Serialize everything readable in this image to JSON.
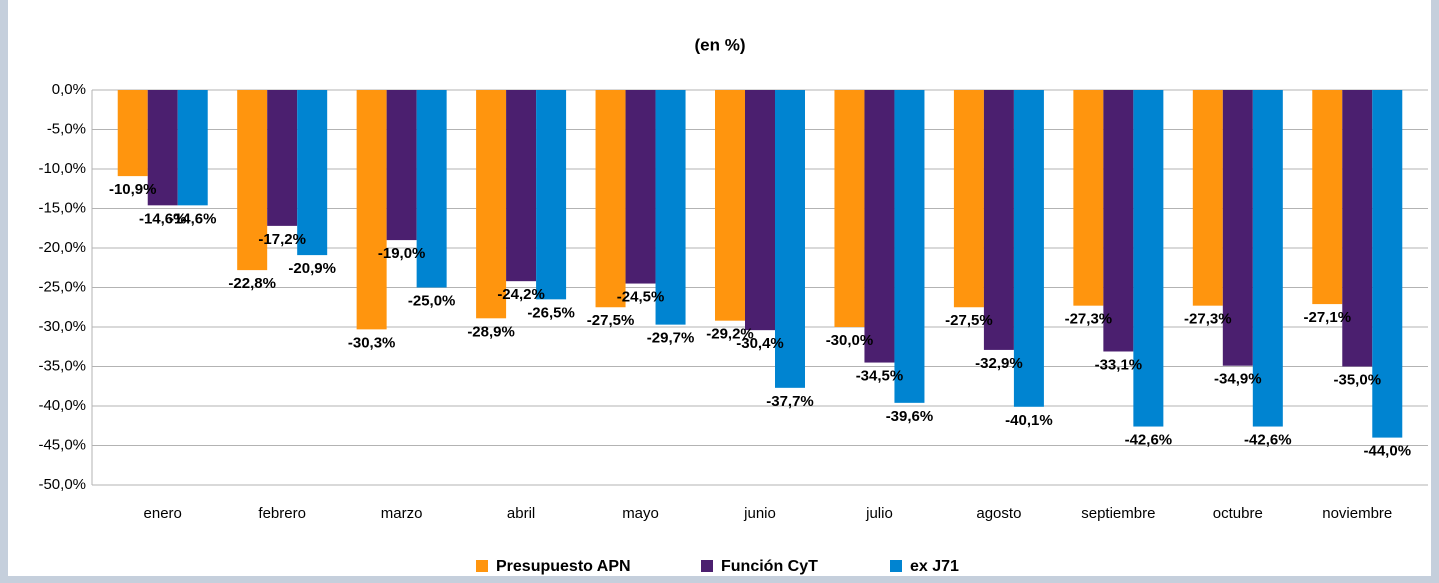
{
  "chart_data": {
    "type": "bar",
    "subtitle": "(en %)",
    "categories": [
      "enero",
      "febrero",
      "marzo",
      "abril",
      "mayo",
      "junio",
      "julio",
      "agosto",
      "septiembre",
      "octubre",
      "noviembre"
    ],
    "series": [
      {
        "name": "Presupuesto APN",
        "color": "#ff950e",
        "values": [
          -10.9,
          -22.8,
          -30.3,
          -28.9,
          -27.5,
          -29.2,
          -30.0,
          -27.5,
          -27.3,
          -27.3,
          -27.1
        ],
        "value_labels": [
          "-10,9%",
          "-22,8%",
          "-30,3%",
          "-28,9%",
          "-27,5%",
          "-29,2%",
          "-30,0%",
          "-27,5%",
          "-27,3%",
          "-27,3%",
          "-27,1%"
        ]
      },
      {
        "name": "Función CyT",
        "color": "#4b1f6f",
        "values": [
          -14.6,
          -17.2,
          -19.0,
          -24.2,
          -24.5,
          -30.4,
          -34.5,
          -32.9,
          -33.1,
          -34.9,
          -35.0
        ],
        "value_labels": [
          "-14,6%",
          "-17,2%",
          "-19,0%",
          "-24,2%",
          "-24,5%",
          "-30,4%",
          "-34,5%",
          "-32,9%",
          "-33,1%",
          "-34,9%",
          "-35,0%"
        ]
      },
      {
        "name": "ex J71",
        "color": "#0084d1",
        "values": [
          -14.6,
          -20.9,
          -25.0,
          -26.5,
          -29.7,
          -37.7,
          -39.6,
          -40.1,
          -42.6,
          -42.6,
          -44.0
        ],
        "value_labels": [
          "-14,6%",
          "-20,9%",
          "-25,0%",
          "-26,5%",
          "-29,7%",
          "-37,7%",
          "-39,6%",
          "-40,1%",
          "-42,6%",
          "-42,6%",
          "-44,0%"
        ]
      }
    ],
    "ylim": [
      -50,
      0
    ],
    "yticks": [
      {
        "value": 0,
        "label": "0,0%"
      },
      {
        "value": -5,
        "label": "-5,0%"
      },
      {
        "value": -10,
        "label": "-10,0%"
      },
      {
        "value": -15,
        "label": "-15,0%"
      },
      {
        "value": -20,
        "label": "-20,0%"
      },
      {
        "value": -25,
        "label": "-25,0%"
      },
      {
        "value": -30,
        "label": "-30,0%"
      },
      {
        "value": -35,
        "label": "-35,0%"
      },
      {
        "value": -40,
        "label": "-40,0%"
      },
      {
        "value": -45,
        "label": "-45,0%"
      },
      {
        "value": -50,
        "label": "-50,0%"
      }
    ],
    "grid": true,
    "legend": "bottom"
  }
}
